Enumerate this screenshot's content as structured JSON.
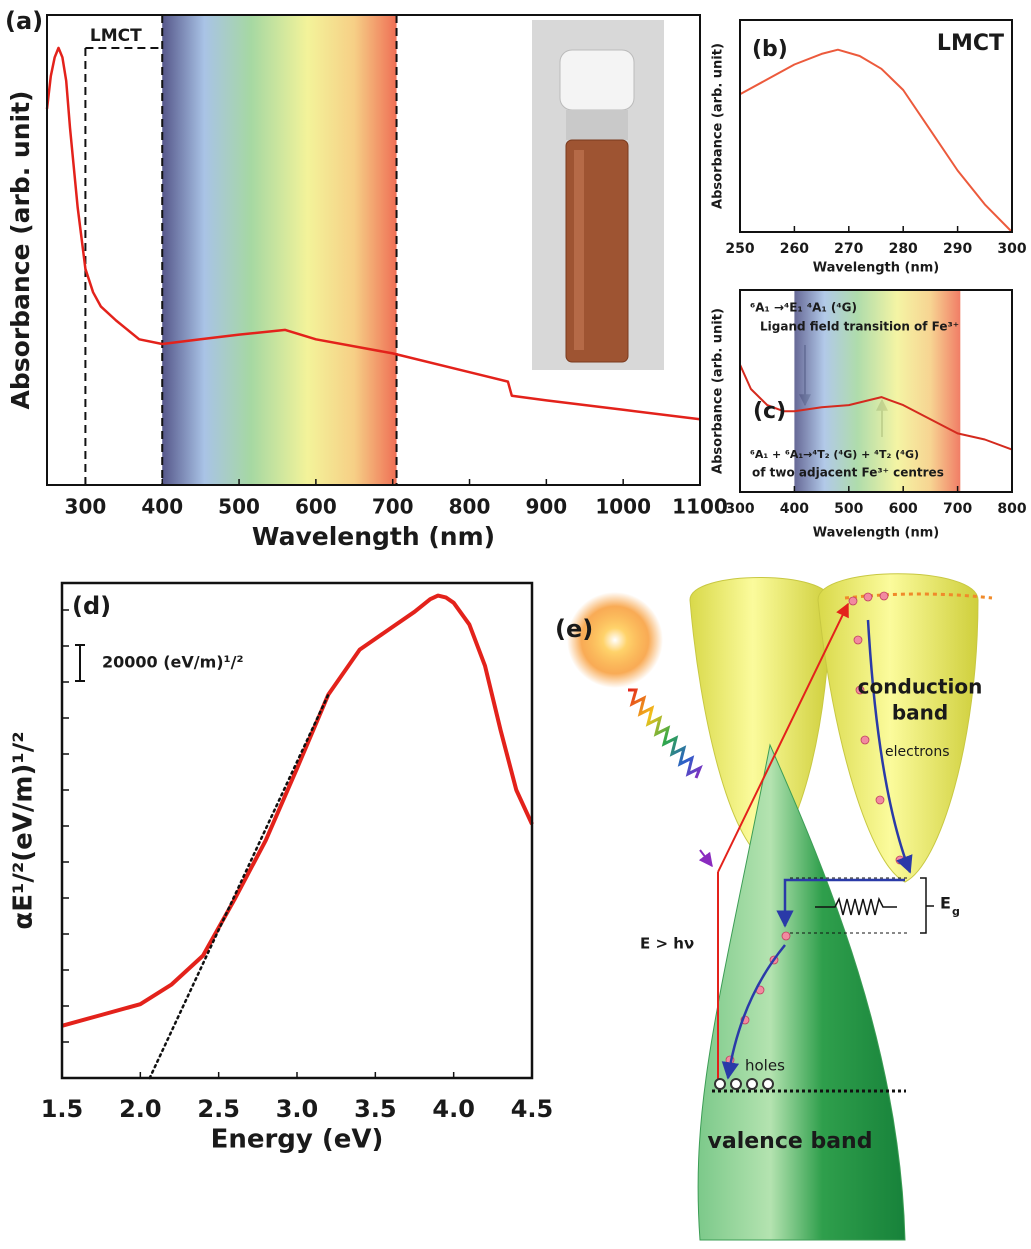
{
  "chart_data": [
    {
      "type": "line",
      "panel_label": "(a)",
      "xlabel": "Wavelength (nm)",
      "ylabel": "Absorbance (arb. unit)",
      "xlim": [
        250,
        1100
      ],
      "ylim": [
        0,
        1
      ],
      "xticks": [
        300,
        400,
        500,
        600,
        700,
        800,
        900,
        1000,
        1100
      ],
      "x": [
        250,
        255,
        260,
        265,
        270,
        275,
        280,
        290,
        300,
        310,
        320,
        340,
        370,
        400,
        450,
        500,
        560,
        600,
        700,
        800,
        850,
        855,
        900,
        1000,
        1100
      ],
      "series": [
        {
          "color": "#e3221b",
          "style": "solid",
          "values": [
            0.8,
            0.87,
            0.91,
            0.93,
            0.91,
            0.86,
            0.76,
            0.59,
            0.46,
            0.41,
            0.38,
            0.35,
            0.31,
            0.3,
            0.31,
            0.32,
            0.33,
            0.31,
            0.28,
            0.24,
            0.22,
            0.19,
            0.18,
            0.16,
            0.14
          ]
        }
      ],
      "regions": [
        {
          "label": "LMCT",
          "xlim": [
            300,
            400
          ],
          "style": "dashed-box"
        },
        {
          "xlim": [
            400,
            705
          ],
          "style": "spectrum"
        }
      ]
    },
    {
      "type": "line",
      "panel_label": "(b)",
      "annotations": [
        "LMCT"
      ],
      "xlabel": "Wavelength (nm)",
      "ylabel": "Absorbance (arb. unit)",
      "xlim": [
        250,
        300
      ],
      "ylim": [
        0,
        1
      ],
      "xticks": [
        250,
        260,
        270,
        280,
        290,
        300
      ],
      "x": [
        250,
        255,
        260,
        265,
        268,
        272,
        276,
        280,
        285,
        290,
        295,
        300
      ],
      "series": [
        {
          "color": "#ec5a3c",
          "style": "solid",
          "values": [
            0.65,
            0.72,
            0.79,
            0.84,
            0.86,
            0.83,
            0.77,
            0.67,
            0.48,
            0.29,
            0.13,
            0.0
          ]
        }
      ]
    },
    {
      "type": "line",
      "panel_label": "(c)",
      "annotations": [
        "⁶A₁ →⁴E₁ ⁴A₁ (⁴G)",
        "Ligand field transition of Fe³⁺",
        "⁶A₁ + ⁶A₁→⁴T₂ (⁴G) + ⁴T₂ (⁴G)",
        "of two adjacent Fe³⁺ centres"
      ],
      "xlabel": "Wavelength (nm)",
      "ylabel": "Absorbance (arb. unit)",
      "xlim": [
        300,
        800
      ],
      "ylim": [
        0,
        1
      ],
      "xticks": [
        300,
        400,
        500,
        600,
        700,
        800
      ],
      "x": [
        300,
        320,
        350,
        380,
        400,
        450,
        500,
        560,
        600,
        650,
        700,
        750,
        800
      ],
      "series": [
        {
          "color": "#d42a1e",
          "style": "solid",
          "values": [
            0.63,
            0.51,
            0.43,
            0.4,
            0.4,
            0.42,
            0.43,
            0.47,
            0.43,
            0.36,
            0.29,
            0.26,
            0.21
          ]
        }
      ],
      "regions": [
        {
          "xlim": [
            400,
            705
          ],
          "style": "spectrum"
        }
      ]
    },
    {
      "type": "line",
      "panel_label": "(d)",
      "xlabel": "Energy (eV)",
      "ylabel": "αE¹/²(eV/m)¹/²",
      "xlim": [
        1.5,
        4.5
      ],
      "ylim": [
        0,
        275000
      ],
      "xticks": [
        1.5,
        {
          "value": 2,
          "label": "2.0"
        },
        2.5,
        {
          "value": 3,
          "label": "3.0"
        },
        3.5,
        {
          "value": 4,
          "label": "4.0"
        },
        4.5
      ],
      "yticks": [
        0,
        20000,
        40000,
        60000,
        80000,
        100000,
        120000,
        140000,
        160000,
        180000,
        200000,
        220000,
        240000,
        260000
      ],
      "ytick_labels": false,
      "scale_bar": {
        "value": 20000,
        "label": "20000 (eV/m)¹/²"
      },
      "x": [
        1.5,
        1.75,
        2.0,
        2.2,
        2.4,
        2.6,
        2.8,
        3.0,
        3.2,
        3.4,
        3.6,
        3.75,
        3.85,
        3.9,
        3.95,
        4.0,
        4.1,
        4.2,
        4.3,
        4.4,
        4.5
      ],
      "series": [
        {
          "color": "#e3221b",
          "style": "solid",
          "values": [
            29000,
            35000,
            41000,
            52000,
            68000,
            99000,
            132000,
            172000,
            213000,
            238000,
            250000,
            259000,
            266000,
            268000,
            267000,
            264000,
            252000,
            229000,
            193000,
            160000,
            141000
          ]
        },
        {
          "color": "#111111",
          "style": "dotted",
          "x": [
            2.06,
            3.2
          ],
          "values": [
            0,
            213000
          ]
        }
      ]
    }
  ],
  "diagram": {
    "panel_label": "(e)",
    "conduction_band": [
      "conduction",
      "band"
    ],
    "electrons": "electrons",
    "eg": [
      "E",
      "g"
    ],
    "energy": "E > hν",
    "holes": "holes",
    "valence_band": "valence band"
  }
}
